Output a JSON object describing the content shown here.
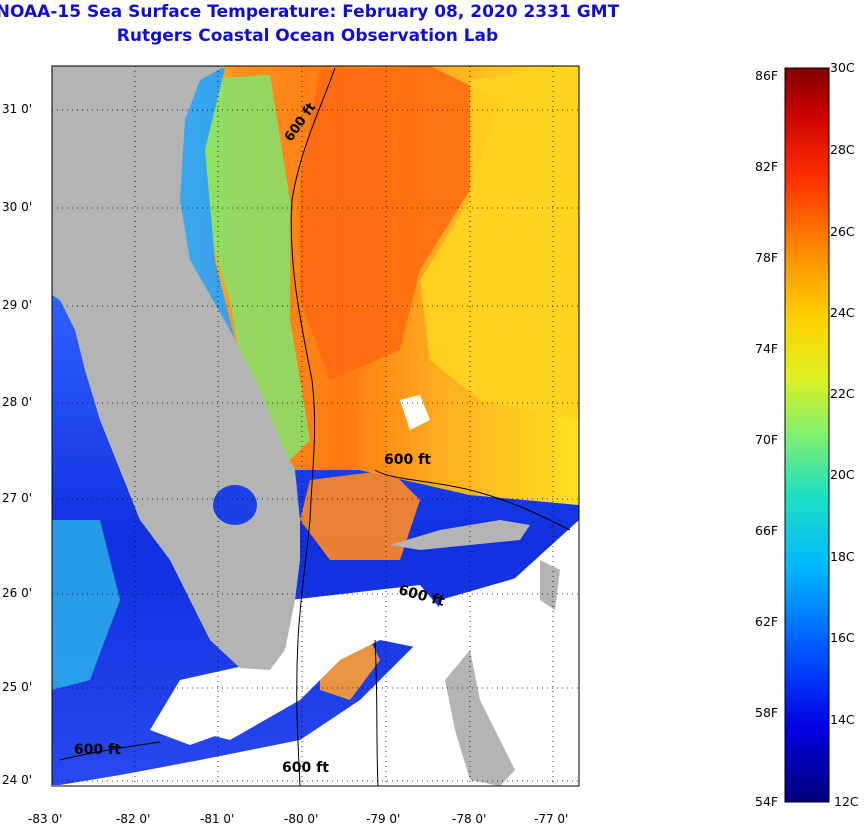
{
  "title_line1": "NOAA-15 Sea Surface Temperature:  February 08, 2020 2331 GMT",
  "title_line2": "Rutgers Coastal Ocean Observation Lab",
  "lat_labels": [
    "31 0'",
    "30 0'",
    "29 0'",
    "28 0'",
    "27 0'",
    "26 0'",
    "25 0'",
    "24 0'"
  ],
  "lon_labels": [
    "-83 0'",
    "-82 0'",
    "-81 0'",
    "-80 0'",
    "-79 0'",
    "-78 0'",
    "-77 0'"
  ],
  "contour_labels": [
    "600 ft",
    "600 ft",
    "600 ft",
    "600 ft",
    "600 ft"
  ],
  "colorbar": {
    "f_labels": [
      "86F",
      "82F",
      "78F",
      "74F",
      "70F",
      "66F",
      "62F",
      "58F",
      "54F"
    ],
    "c_labels": [
      "30C",
      "28C",
      "26C",
      "24C",
      "22C",
      "20C",
      "18C",
      "16C",
      "14C",
      "12C"
    ],
    "range_c": [
      12,
      30
    ],
    "range_f": [
      54,
      86
    ]
  },
  "colors": {
    "land": "#b4b4b4",
    "no_data": "#ffffff",
    "title": "#1010c8"
  }
}
